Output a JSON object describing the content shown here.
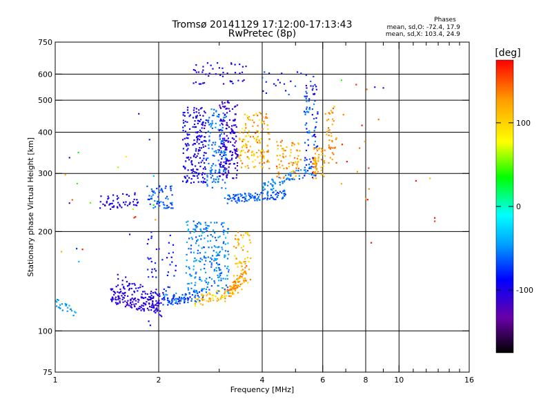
{
  "title_line1": "Tromsø 20141129 17:12:00-17:13:43",
  "title_line2": "RwPretec (8p)",
  "phases_box": {
    "heading": "Phases",
    "line_o": "mean, sd,O: -72.4, 17.9",
    "line_x": "mean, sd,X: 103.4, 24.9"
  },
  "colorbar": {
    "unit_label": "[deg]",
    "range": [
      -175,
      175
    ],
    "tick_values": [
      100,
      0,
      -100
    ],
    "tick_labels": [
      "100",
      "0",
      "-100"
    ],
    "colors": [
      "#000000",
      "#6a00a8",
      "#0000ff",
      "#00a0ff",
      "#00ffff",
      "#00ff00",
      "#ffff00",
      "#ffa000",
      "#ff0000"
    ]
  },
  "chart_data": {
    "type": "scatter",
    "title": "Tromsø 20141129 17:12:00-17:13:43",
    "subtitle": "RwPretec (8p)",
    "xlabel": "Frequency [MHz]",
    "ylabel": "Stationary phase Virtual Height [km]",
    "xscale": "log",
    "yscale": "log",
    "xlim": [
      1,
      16
    ],
    "ylim": [
      75,
      750
    ],
    "x_ticks": [
      1,
      2,
      4,
      6,
      8,
      10,
      16
    ],
    "x_tick_labels": [
      "1",
      "2",
      "4",
      "6",
      "8",
      "10",
      "16"
    ],
    "x_minor_ticks": [
      3,
      5,
      7,
      9,
      11,
      12,
      13,
      14,
      15
    ],
    "x_grid": [
      2,
      4,
      6,
      8,
      10
    ],
    "y_ticks": [
      75,
      100,
      200,
      300,
      400,
      500,
      600,
      750
    ],
    "y_tick_labels": [
      "75",
      "100",
      "200",
      "300",
      "400",
      "500",
      "600",
      "750"
    ],
    "y_grid": [
      100,
      200,
      300,
      400,
      500,
      600
    ],
    "grid": true,
    "color_by": "phase [deg]",
    "clusters": [
      {
        "shape": "line",
        "f0": 1.0,
        "f1": 1.15,
        "h0": 122,
        "h1": 113,
        "jitter": 0.03,
        "phase": [
          -55,
          -35
        ],
        "n": 25
      },
      {
        "shape": "line",
        "f0": 1.45,
        "f1": 2.05,
        "h0": 128,
        "h1": 116,
        "jitter": 0.05,
        "phase": [
          -115,
          -95
        ],
        "n": 140
      },
      {
        "shape": "line",
        "f0": 1.5,
        "f1": 2.1,
        "h0": 142,
        "h1": 125,
        "jitter": 0.05,
        "phase": [
          -110,
          -90
        ],
        "n": 60
      },
      {
        "shape": "line",
        "f0": 2.05,
        "f1": 2.7,
        "h0": 124,
        "h1": 128,
        "jitter": 0.04,
        "phase": [
          -90,
          -45
        ],
        "n": 90
      },
      {
        "shape": "line",
        "f0": 2.5,
        "f1": 3.5,
        "h0": 122,
        "h1": 135,
        "jitter": 0.04,
        "phase": [
          80,
          130
        ],
        "n": 70
      },
      {
        "shape": "line",
        "f0": 3.1,
        "f1": 3.6,
        "h0": 128,
        "h1": 150,
        "jitter": 0.05,
        "phase": [
          110,
          150
        ],
        "n": 60
      },
      {
        "shape": "vcol",
        "f0": 2.4,
        "f1": 3.2,
        "h0": 130,
        "h1": 215,
        "phase": [
          -70,
          -35
        ],
        "n": 230
      },
      {
        "shape": "vcol",
        "f0": 3.3,
        "f1": 3.7,
        "h0": 140,
        "h1": 200,
        "phase": [
          90,
          140
        ],
        "n": 60
      },
      {
        "shape": "vcol",
        "f0": 1.85,
        "f1": 2.25,
        "h0": 125,
        "h1": 200,
        "phase": [
          -95,
          -70
        ],
        "n": 45
      },
      {
        "shape": "line",
        "f0": 1.35,
        "f1": 1.75,
        "h0": 245,
        "h1": 250,
        "jitter": 0.05,
        "phase": [
          -110,
          -90
        ],
        "n": 50
      },
      {
        "shape": "vcol",
        "f0": 1.85,
        "f1": 2.2,
        "h0": 235,
        "h1": 275,
        "phase": [
          -85,
          -45
        ],
        "n": 60
      },
      {
        "shape": "vcol",
        "f0": 2.35,
        "f1": 2.75,
        "h0": 280,
        "h1": 480,
        "phase": [
          -110,
          -80
        ],
        "n": 190
      },
      {
        "shape": "vcol",
        "f0": 2.75,
        "f1": 3.15,
        "h0": 270,
        "h1": 470,
        "phase": [
          -70,
          -45
        ],
        "n": 130
      },
      {
        "shape": "vcol",
        "f0": 3.0,
        "f1": 3.4,
        "h0": 290,
        "h1": 500,
        "phase": [
          -120,
          -95
        ],
        "n": 170
      },
      {
        "shape": "vcol",
        "f0": 3.4,
        "f1": 4.2,
        "h0": 310,
        "h1": 460,
        "phase": [
          80,
          150
        ],
        "n": 140
      },
      {
        "shape": "line",
        "f0": 3.1,
        "f1": 4.7,
        "h0": 250,
        "h1": 260,
        "jitter": 0.03,
        "phase": [
          -80,
          -50
        ],
        "n": 110
      },
      {
        "shape": "line",
        "f0": 4.0,
        "f1": 5.6,
        "h0": 270,
        "h1": 310,
        "jitter": 0.04,
        "phase": [
          -70,
          -40
        ],
        "n": 60
      },
      {
        "shape": "vcol",
        "f0": 4.4,
        "f1": 5.2,
        "h0": 290,
        "h1": 380,
        "phase": [
          100,
          150
        ],
        "n": 70
      },
      {
        "shape": "vcol",
        "f0": 5.3,
        "f1": 5.8,
        "h0": 290,
        "h1": 560,
        "phase": [
          -110,
          -40
        ],
        "n": 90
      },
      {
        "shape": "vcol",
        "f0": 5.6,
        "f1": 6.1,
        "h0": 290,
        "h1": 360,
        "phase": [
          100,
          140
        ],
        "n": 60
      },
      {
        "shape": "vcol",
        "f0": 6.1,
        "f1": 6.6,
        "h0": 320,
        "h1": 480,
        "phase": [
          110,
          150
        ],
        "n": 40
      },
      {
        "shape": "vcol",
        "f0": 2.5,
        "f1": 3.6,
        "h0": 560,
        "h1": 650,
        "phase": [
          -110,
          -80
        ],
        "n": 45
      },
      {
        "shape": "vcol",
        "f0": 4.0,
        "f1": 5.8,
        "h0": 520,
        "h1": 610,
        "phase": [
          -100,
          -60
        ],
        "n": 25
      },
      {
        "shape": "vcol",
        "f0": 6.8,
        "f1": 8.8,
        "h0": 250,
        "h1": 560,
        "phase": [
          110,
          170
        ],
        "n": 14
      },
      {
        "shape": "vcol",
        "f0": 1.0,
        "f1": 2.0,
        "h0": 160,
        "h1": 360,
        "phase": [
          -120,
          170
        ],
        "n": 20
      }
    ],
    "sample_points": [
      {
        "f": 1.87,
        "h": 107,
        "phase": -90
      },
      {
        "f": 1.89,
        "h": 104,
        "phase": -85
      },
      {
        "f": 1.1,
        "h": 244,
        "phase": -120
      },
      {
        "f": 1.1,
        "h": 335,
        "phase": -110
      },
      {
        "f": 1.75,
        "h": 455,
        "phase": -105
      },
      {
        "f": 1.88,
        "h": 380,
        "phase": -80
      },
      {
        "f": 8.3,
        "h": 185,
        "phase": 170
      },
      {
        "f": 8.1,
        "h": 250,
        "phase": 170
      },
      {
        "f": 11.2,
        "h": 285,
        "phase": 170
      },
      {
        "f": 12.3,
        "h": 290,
        "phase": 110
      },
      {
        "f": 12.7,
        "h": 220,
        "phase": 170
      },
      {
        "f": 12.7,
        "h": 215,
        "phase": 160
      },
      {
        "f": 8.5,
        "h": 548,
        "phase": -120
      },
      {
        "f": 9.0,
        "h": 545,
        "phase": -120
      },
      {
        "f": 6.8,
        "h": 575,
        "phase": 40
      }
    ]
  }
}
